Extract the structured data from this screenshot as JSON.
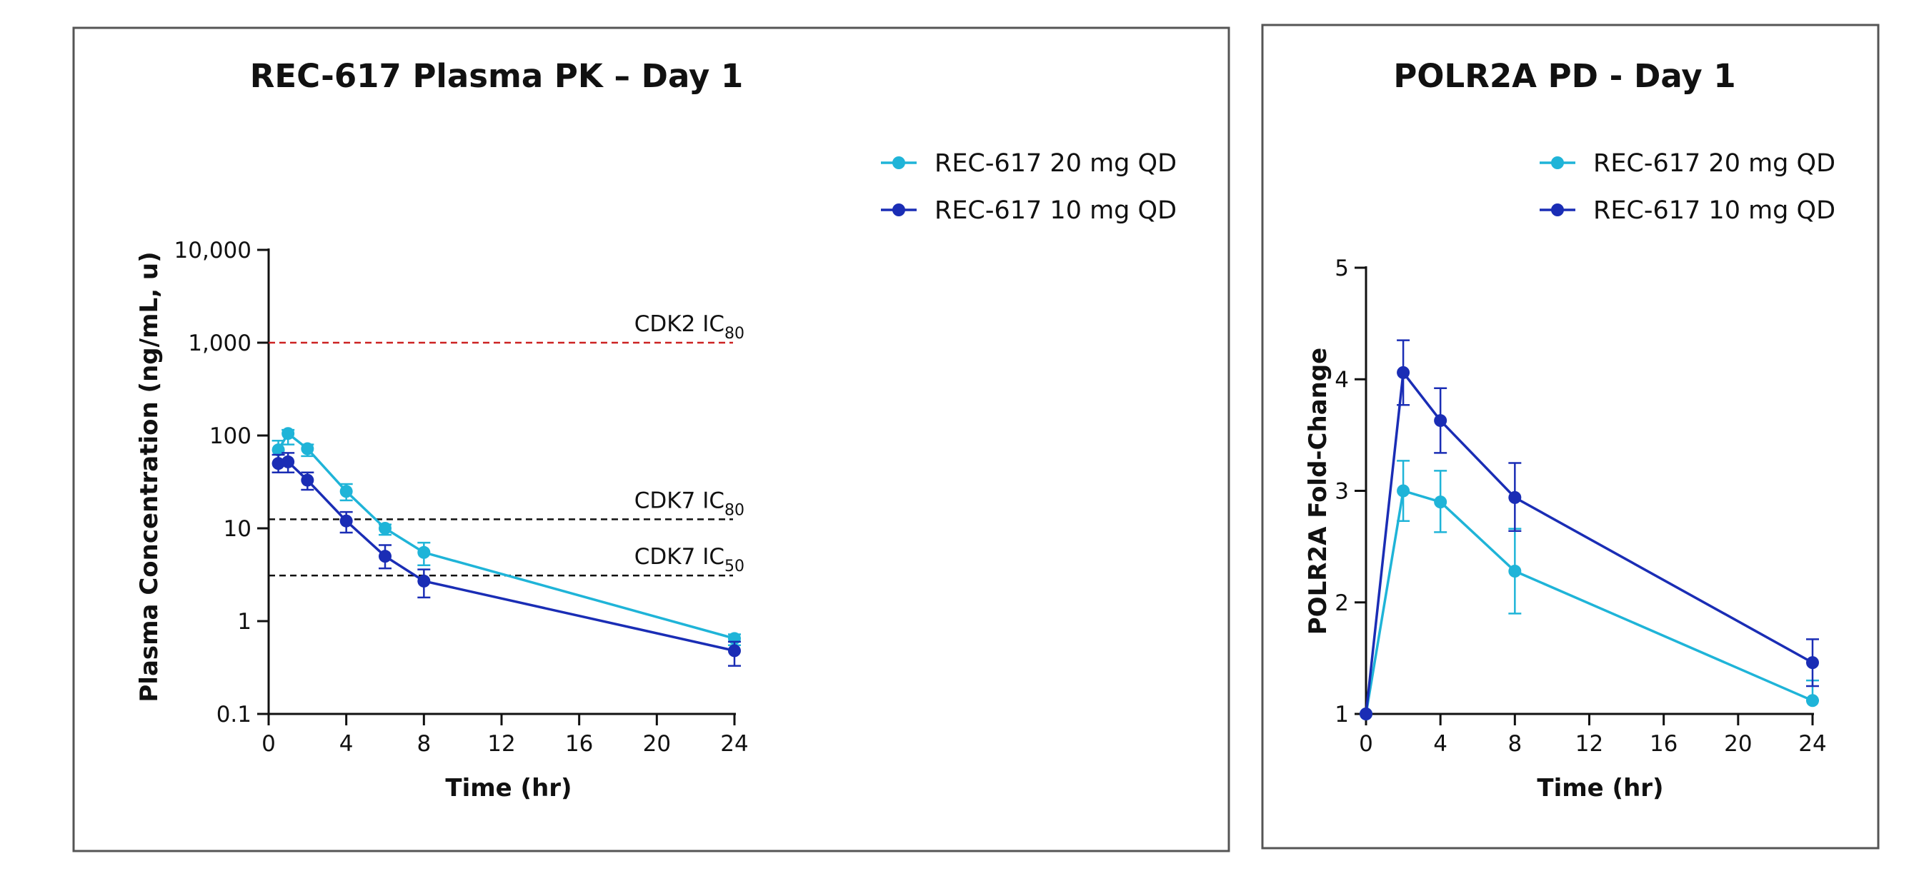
{
  "chart_data": [
    {
      "type": "line",
      "title": "REC-617 Plasma PK – Day 1",
      "xlabel": "Time (hr)",
      "ylabel": "Plasma Concentration (ng/mL, u)",
      "yscale": "log",
      "ylim": [
        0.1,
        10000
      ],
      "xlim": [
        0,
        24
      ],
      "x_ticks": [
        0,
        4,
        8,
        12,
        16,
        20,
        24
      ],
      "x_tick_labels": [
        "0",
        "4",
        "8",
        "12",
        "16",
        "20",
        "24"
      ],
      "y_ticks": [
        0.1,
        1,
        10,
        100,
        1000,
        10000
      ],
      "y_tick_labels": [
        "0.1",
        "1",
        "10",
        "100",
        "1,000",
        "10,000"
      ],
      "legend_position": "top-right",
      "series": [
        {
          "name": "REC-617 20 mg QD",
          "color": "#1fb4d8",
          "x": [
            0.5,
            1,
            2,
            4,
            6,
            8,
            24
          ],
          "values": [
            70,
            105,
            72,
            25,
            10,
            5.5,
            0.65
          ],
          "err_low": [
            50,
            80,
            60,
            20,
            8.5,
            4,
            0.55
          ],
          "err_high": [
            88,
            115,
            80,
            30,
            11,
            7,
            0.72
          ]
        },
        {
          "name": "REC-617 10 mg QD",
          "color": "#1a2db5",
          "x": [
            0.5,
            1,
            2,
            4,
            6,
            8,
            24
          ],
          "values": [
            50,
            52,
            33,
            12,
            5,
            2.7,
            0.48
          ],
          "err_low": [
            40,
            40,
            26,
            9,
            3.7,
            1.8,
            0.33
          ],
          "err_high": [
            62,
            65,
            40,
            15,
            6.6,
            3.6,
            0.6
          ]
        }
      ],
      "reference_lines": [
        {
          "label": "CDK2 IC",
          "subscript": "80",
          "value": 1000,
          "color": "#cc2222"
        },
        {
          "label": "CDK7 IC",
          "subscript": "80",
          "value": 12.5,
          "color": "#111111"
        },
        {
          "label": "CDK7 IC",
          "subscript": "50",
          "value": 3.1,
          "color": "#111111"
        }
      ]
    },
    {
      "type": "line",
      "title": "POLR2A PD - Day 1",
      "xlabel": "Time (hr)",
      "ylabel": "POLR2A Fold-Change",
      "yscale": "linear",
      "ylim": [
        1,
        5
      ],
      "xlim": [
        0,
        24
      ],
      "x_ticks": [
        0,
        4,
        8,
        12,
        16,
        20,
        24
      ],
      "x_tick_labels": [
        "0",
        "4",
        "8",
        "12",
        "16",
        "20",
        "24"
      ],
      "y_ticks": [
        1,
        2,
        3,
        4,
        5
      ],
      "y_tick_labels": [
        "1",
        "2",
        "3",
        "4",
        "5"
      ],
      "legend_position": "top-right",
      "series": [
        {
          "name": "REC-617 20 mg QD",
          "color": "#1fb4d8",
          "x": [
            0,
            2,
            4,
            8,
            24
          ],
          "values": [
            1.0,
            3.0,
            2.9,
            2.28,
            1.12
          ],
          "err_low": [
            1.0,
            2.73,
            2.63,
            1.9,
            1.12
          ],
          "err_high": [
            1.0,
            3.27,
            3.18,
            2.66,
            1.3
          ]
        },
        {
          "name": "REC-617 10 mg QD",
          "color": "#1a2db5",
          "x": [
            0,
            2,
            4,
            8,
            24
          ],
          "values": [
            1.0,
            4.06,
            3.63,
            2.94,
            1.46
          ],
          "err_low": [
            1.0,
            3.77,
            3.34,
            2.64,
            1.25
          ],
          "err_high": [
            1.0,
            4.35,
            3.92,
            3.25,
            1.67
          ]
        }
      ]
    }
  ]
}
